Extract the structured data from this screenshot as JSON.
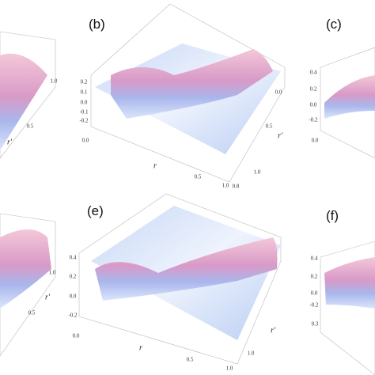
{
  "panels": [
    {
      "ticks": [
        "1.0",
        "0.5"
      ],
      "axis_labels": [
        "r'"
      ]
    },
    {
      "label": "(b)",
      "ticks": [
        "0.2",
        "0.1",
        "0.0",
        "-0.1",
        "-0.2",
        "0.0",
        "0.0",
        "0.5",
        "1.0",
        "0.5",
        "1.0",
        "0.8"
      ],
      "axis_labels": [
        "r",
        "r'"
      ]
    },
    {
      "label": "(c)",
      "ticks": [
        "0.4",
        "0.2",
        "0.0",
        "-0.2",
        "0.0"
      ],
      "axis_labels": []
    },
    {
      "ticks": [
        "1.0",
        "0.5"
      ],
      "axis_labels": [
        "r'"
      ]
    },
    {
      "label": "(e)",
      "ticks": [
        "0.4",
        "0.2",
        "0.0",
        "-0.2",
        "0.0",
        "0.5",
        "1.0",
        "1.0"
      ],
      "axis_labels": [
        "r",
        "r'"
      ]
    },
    {
      "label": "(f)",
      "ticks": [
        "0.4",
        "0.2",
        "0.0",
        "-0.2",
        "0.3"
      ],
      "axis_labels": []
    }
  ]
}
